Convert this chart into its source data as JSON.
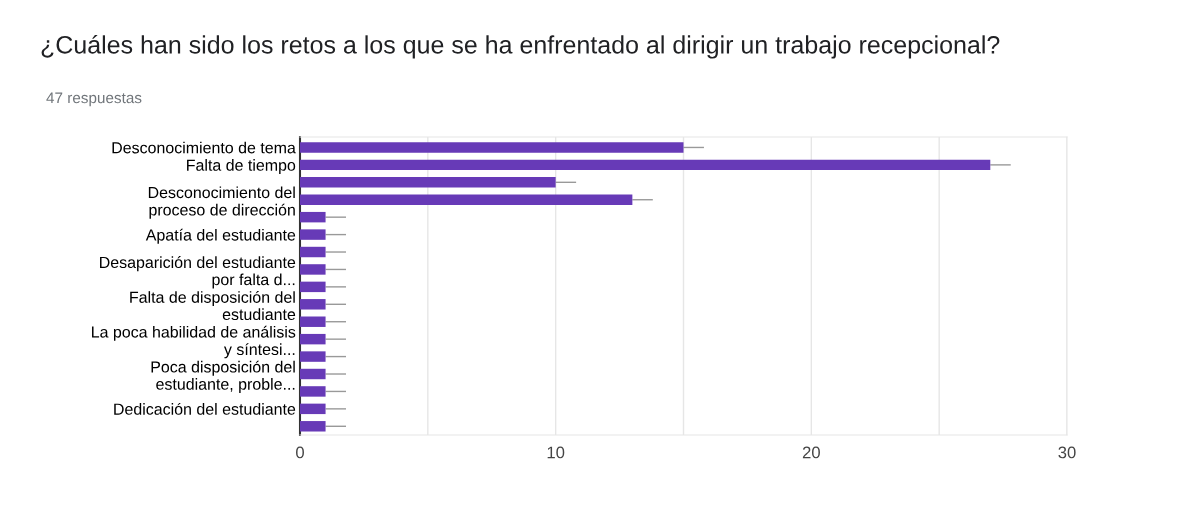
{
  "chart_data": {
    "type": "bar",
    "orientation": "horizontal",
    "title": "¿Cuáles han sido los retos a los que se ha enfrentado al dirigir un trabajo recepcional?",
    "subtitle": "47 respuestas",
    "categories": [
      "Desconocimiento de tema",
      "Falta de tiempo",
      null,
      "Desconocimiento del\nproceso de dirección",
      null,
      "Apatía del estudiante",
      null,
      "Desaparición del estudiante\npor falta d...",
      null,
      "Falta de disposición del\nestudiante",
      null,
      "La poca habilidad de análisis\ny síntesi...",
      null,
      "Poca disposición del\nestudiante, proble...",
      null,
      "Dedicación del estudiante",
      null
    ],
    "values": [
      15,
      27,
      10,
      13,
      1,
      1,
      1,
      1,
      1,
      1,
      1,
      1,
      1,
      1,
      1,
      1,
      1
    ],
    "errors": [
      [
        15,
        15.8
      ],
      [
        27,
        27.8
      ],
      [
        10,
        10.8
      ],
      [
        13,
        13.8
      ],
      [
        1,
        1.8
      ],
      [
        1,
        1.8
      ],
      [
        1,
        1.8
      ],
      [
        1,
        1.8
      ],
      [
        1,
        1.8
      ],
      [
        1,
        1.8
      ],
      [
        1,
        1.8
      ],
      [
        1,
        1.8
      ],
      [
        1,
        1.8
      ],
      [
        1,
        1.8
      ],
      [
        1,
        1.8
      ],
      [
        1,
        1.8
      ],
      [
        1,
        1.8
      ]
    ],
    "color": "#673ab7",
    "xlim": [
      0,
      30
    ],
    "xticks": [
      0,
      {
        "value": 5,
        "label": null
      },
      10,
      {
        "value": 15,
        "label": null
      },
      20,
      {
        "value": 25,
        "label": null
      },
      30
    ],
    "grid": "x"
  }
}
